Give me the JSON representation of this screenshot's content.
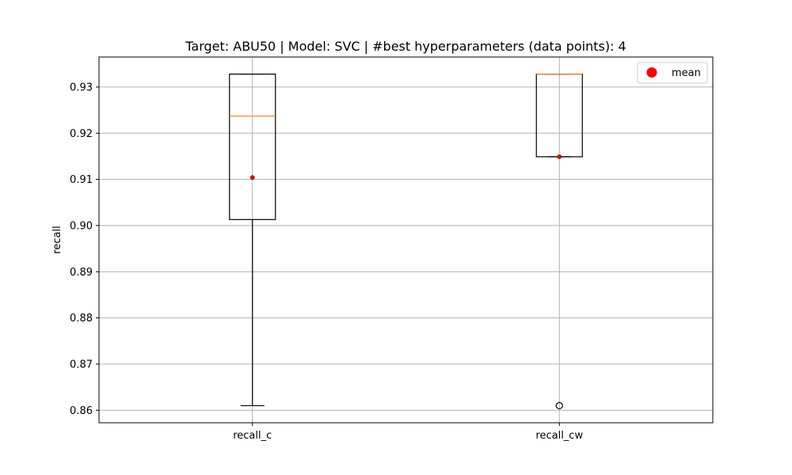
{
  "chart_data": {
    "type": "box",
    "title": "Target: ABU50 | Model: SVC | #best hyperparameters (data points): 4",
    "xlabel": "",
    "ylabel": "recall",
    "categories": [
      "recall_c",
      "recall_cw"
    ],
    "ylim": [
      0.8573,
      0.9365
    ],
    "yticks": [
      0.86,
      0.87,
      0.88,
      0.89,
      0.9,
      0.91,
      0.92,
      0.93
    ],
    "ytick_labels": [
      "0.86",
      "0.87",
      "0.88",
      "0.89",
      "0.90",
      "0.91",
      "0.92",
      "0.93"
    ],
    "grid": true,
    "legend": {
      "placement": "top-right",
      "entries": [
        {
          "label": "mean",
          "marker": "circle",
          "color": "#ff0000"
        }
      ]
    },
    "boxes": [
      {
        "category": "recall_c",
        "whisker_low": 0.861,
        "q1": 0.9013,
        "median": 0.9237,
        "q3": 0.9328,
        "whisker_high": 0.9328,
        "mean": 0.9104,
        "outliers": []
      },
      {
        "category": "recall_cw",
        "whisker_low": 0.9149,
        "q1": 0.9149,
        "median": 0.9328,
        "q3": 0.9328,
        "whisker_high": 0.9328,
        "mean": 0.9149,
        "outliers": [
          0.861
        ]
      }
    ],
    "colors": {
      "box": "#000000",
      "median": "#ff7f0e",
      "mean": "#ff0000",
      "grid": "#b0b0b0"
    }
  }
}
